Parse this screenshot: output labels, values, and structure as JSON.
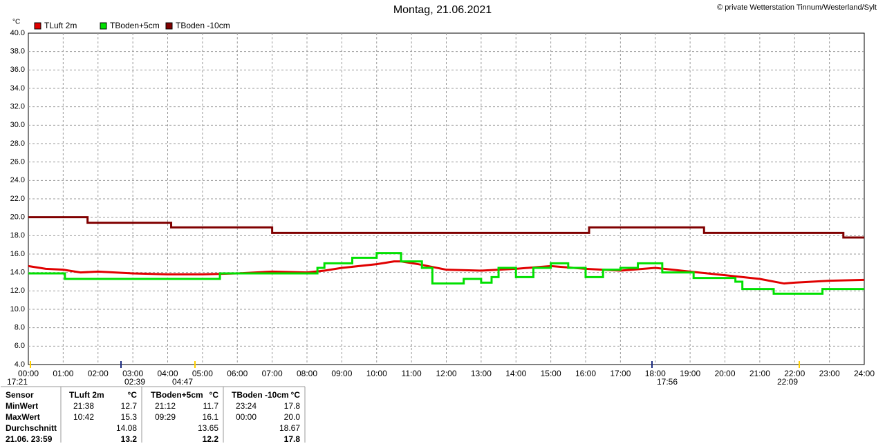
{
  "chart_data": {
    "type": "line",
    "title": "Montag, 21.06.2021",
    "subtitle": "© private Wetterstation Tinnum/Westerland/Sylt",
    "y_label": "°C",
    "xlim": [
      0,
      24
    ],
    "ylim": [
      4,
      40
    ],
    "grid": true,
    "xticks": [
      {
        "value": 0,
        "label": "00:00"
      },
      {
        "value": 1,
        "label": "01:00"
      },
      {
        "value": 2,
        "label": "02:00"
      },
      {
        "value": 3,
        "label": "03:00"
      },
      {
        "value": 4,
        "label": "04:00"
      },
      {
        "value": 5,
        "label": "05:00"
      },
      {
        "value": 6,
        "label": "06:00"
      },
      {
        "value": 7,
        "label": "07:00"
      },
      {
        "value": 8,
        "label": "08:00"
      },
      {
        "value": 9,
        "label": "09:00"
      },
      {
        "value": 10,
        "label": "10:00"
      },
      {
        "value": 11,
        "label": "11:00"
      },
      {
        "value": 12,
        "label": "12:00"
      },
      {
        "value": 13,
        "label": "13:00"
      },
      {
        "value": 14,
        "label": "14:00"
      },
      {
        "value": 15,
        "label": "15:00"
      },
      {
        "value": 16,
        "label": "16:00"
      },
      {
        "value": 17,
        "label": "17:00"
      },
      {
        "value": 18,
        "label": "18:00"
      },
      {
        "value": 19,
        "label": "19:00"
      },
      {
        "value": 20,
        "label": "20:00"
      },
      {
        "value": 21,
        "label": "21:00"
      },
      {
        "value": 22,
        "label": "22:00"
      },
      {
        "value": 23,
        "label": "23:00"
      },
      {
        "value": 24,
        "label": "24:00"
      }
    ],
    "yticks": [
      {
        "value": 4,
        "label": "4.0"
      },
      {
        "value": 6,
        "label": "6.0"
      },
      {
        "value": 8,
        "label": "8.0"
      },
      {
        "value": 10,
        "label": "10.0"
      },
      {
        "value": 12,
        "label": "12.0"
      },
      {
        "value": 14,
        "label": "14.0"
      },
      {
        "value": 16,
        "label": "16.0"
      },
      {
        "value": 18,
        "label": "18.0"
      },
      {
        "value": 20,
        "label": "20.0"
      },
      {
        "value": 22,
        "label": "22.0"
      },
      {
        "value": 24,
        "label": "24.0"
      },
      {
        "value": 26,
        "label": "26.0"
      },
      {
        "value": 28,
        "label": "28.0"
      },
      {
        "value": 30,
        "label": "30.0"
      },
      {
        "value": 32,
        "label": "32.0"
      },
      {
        "value": 34,
        "label": "34.0"
      },
      {
        "value": 36,
        "label": "36.0"
      },
      {
        "value": 38,
        "label": "38.0"
      },
      {
        "value": 40,
        "label": "40.0"
      }
    ],
    "series": [
      {
        "name": "TLuft 2m",
        "color": "#e00000",
        "step": false,
        "x": [
          0,
          0.5,
          1,
          1.5,
          2,
          3,
          4,
          5,
          6,
          7,
          8,
          8.5,
          9,
          10,
          10.5,
          10.7,
          11.2,
          12,
          13,
          14,
          15,
          16,
          17,
          18,
          19,
          20,
          21,
          21.7,
          22,
          23,
          24
        ],
        "values": [
          14.7,
          14.4,
          14.3,
          14.0,
          14.1,
          13.9,
          13.8,
          13.8,
          13.9,
          14.1,
          14.0,
          14.2,
          14.5,
          14.9,
          15.2,
          15.2,
          14.9,
          14.3,
          14.2,
          14.4,
          14.7,
          14.4,
          14.2,
          14.5,
          14.1,
          13.7,
          13.3,
          12.8,
          12.9,
          13.1,
          13.2
        ]
      },
      {
        "name": "TBoden+5cm",
        "color": "#00e000",
        "step": true,
        "x": [
          0,
          1.05,
          2,
          5.5,
          8.3,
          8.5,
          9.3,
          9.4,
          10,
          10.7,
          11.3,
          11.6,
          12.5,
          13,
          13.3,
          13.5,
          14,
          14.5,
          15,
          15.5,
          16,
          16.5,
          17,
          17.5,
          18.2,
          19.1,
          20.3,
          20.5,
          21.4,
          22.8,
          24
        ],
        "values": [
          13.9,
          13.3,
          13.3,
          13.9,
          14.5,
          15.0,
          15.6,
          15.6,
          16.1,
          15.2,
          14.5,
          12.8,
          13.3,
          12.9,
          13.5,
          14.5,
          13.5,
          14.5,
          15.0,
          14.5,
          13.5,
          14.3,
          14.5,
          15.0,
          14.0,
          13.4,
          13.0,
          12.2,
          11.7,
          12.2,
          12.2
        ]
      },
      {
        "name": "TBoden -10cm",
        "color": "#800000",
        "step": true,
        "x": [
          0,
          1.7,
          4.1,
          7.0,
          16.1,
          19.4,
          23.4,
          24
        ],
        "values": [
          20.0,
          19.4,
          18.9,
          18.3,
          18.9,
          18.3,
          17.8,
          17.8
        ]
      }
    ],
    "annotations": [
      "17:21",
      "02:39",
      "04:47",
      "17:56",
      "22:09"
    ]
  },
  "table": {
    "header": [
      "Sensor",
      "TLuft 2m",
      "°C",
      "TBoden+5cm",
      "°C",
      "TBoden -10cm",
      "°C"
    ],
    "rows": [
      [
        "MinWert",
        "21:38",
        "12.7",
        "21:12",
        "11.7",
        "23:24",
        "17.8"
      ],
      [
        "MaxWert",
        "10:42",
        "15.3",
        "09:29",
        "16.1",
        "00:00",
        "20.0"
      ],
      [
        "Durchschnitt",
        null,
        "14.08",
        null,
        "13.65",
        null,
        "18.67"
      ],
      [
        "21.06. 23:59",
        null,
        "13.2",
        null,
        "12.2",
        null,
        "17.8"
      ]
    ]
  }
}
